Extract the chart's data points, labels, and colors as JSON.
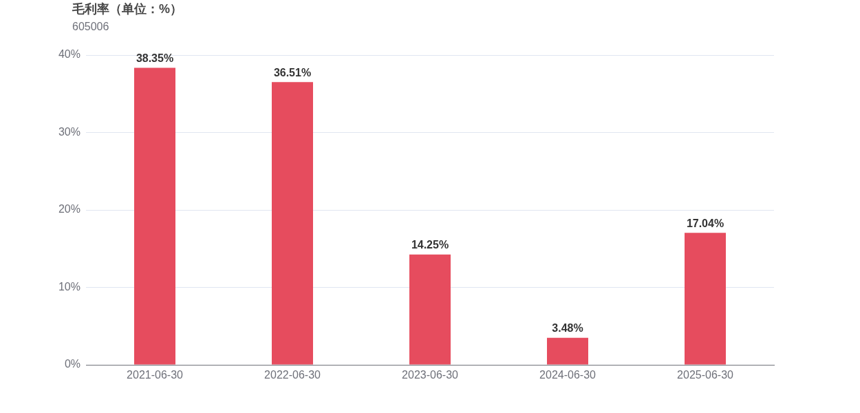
{
  "chart_data": {
    "type": "bar",
    "title": "毛利率（单位：%）",
    "subtitle": "605006",
    "categories": [
      "2021-06-30",
      "2022-06-30",
      "2023-06-30",
      "2024-06-30",
      "2025-06-30"
    ],
    "values": [
      38.35,
      36.51,
      14.25,
      3.48,
      17.04
    ],
    "value_labels": [
      "38.35%",
      "36.51%",
      "14.25%",
      "3.48%",
      "17.04%"
    ],
    "color": "#e64c5e",
    "ylim": [
      0,
      40
    ],
    "yticks": [
      {
        "value": 0,
        "label": "0%"
      },
      {
        "value": 10,
        "label": "10%"
      },
      {
        "value": 20,
        "label": "20%"
      },
      {
        "value": 30,
        "label": "30%"
      },
      {
        "value": 40,
        "label": "40%"
      }
    ],
    "grid": "y",
    "legend": false
  }
}
